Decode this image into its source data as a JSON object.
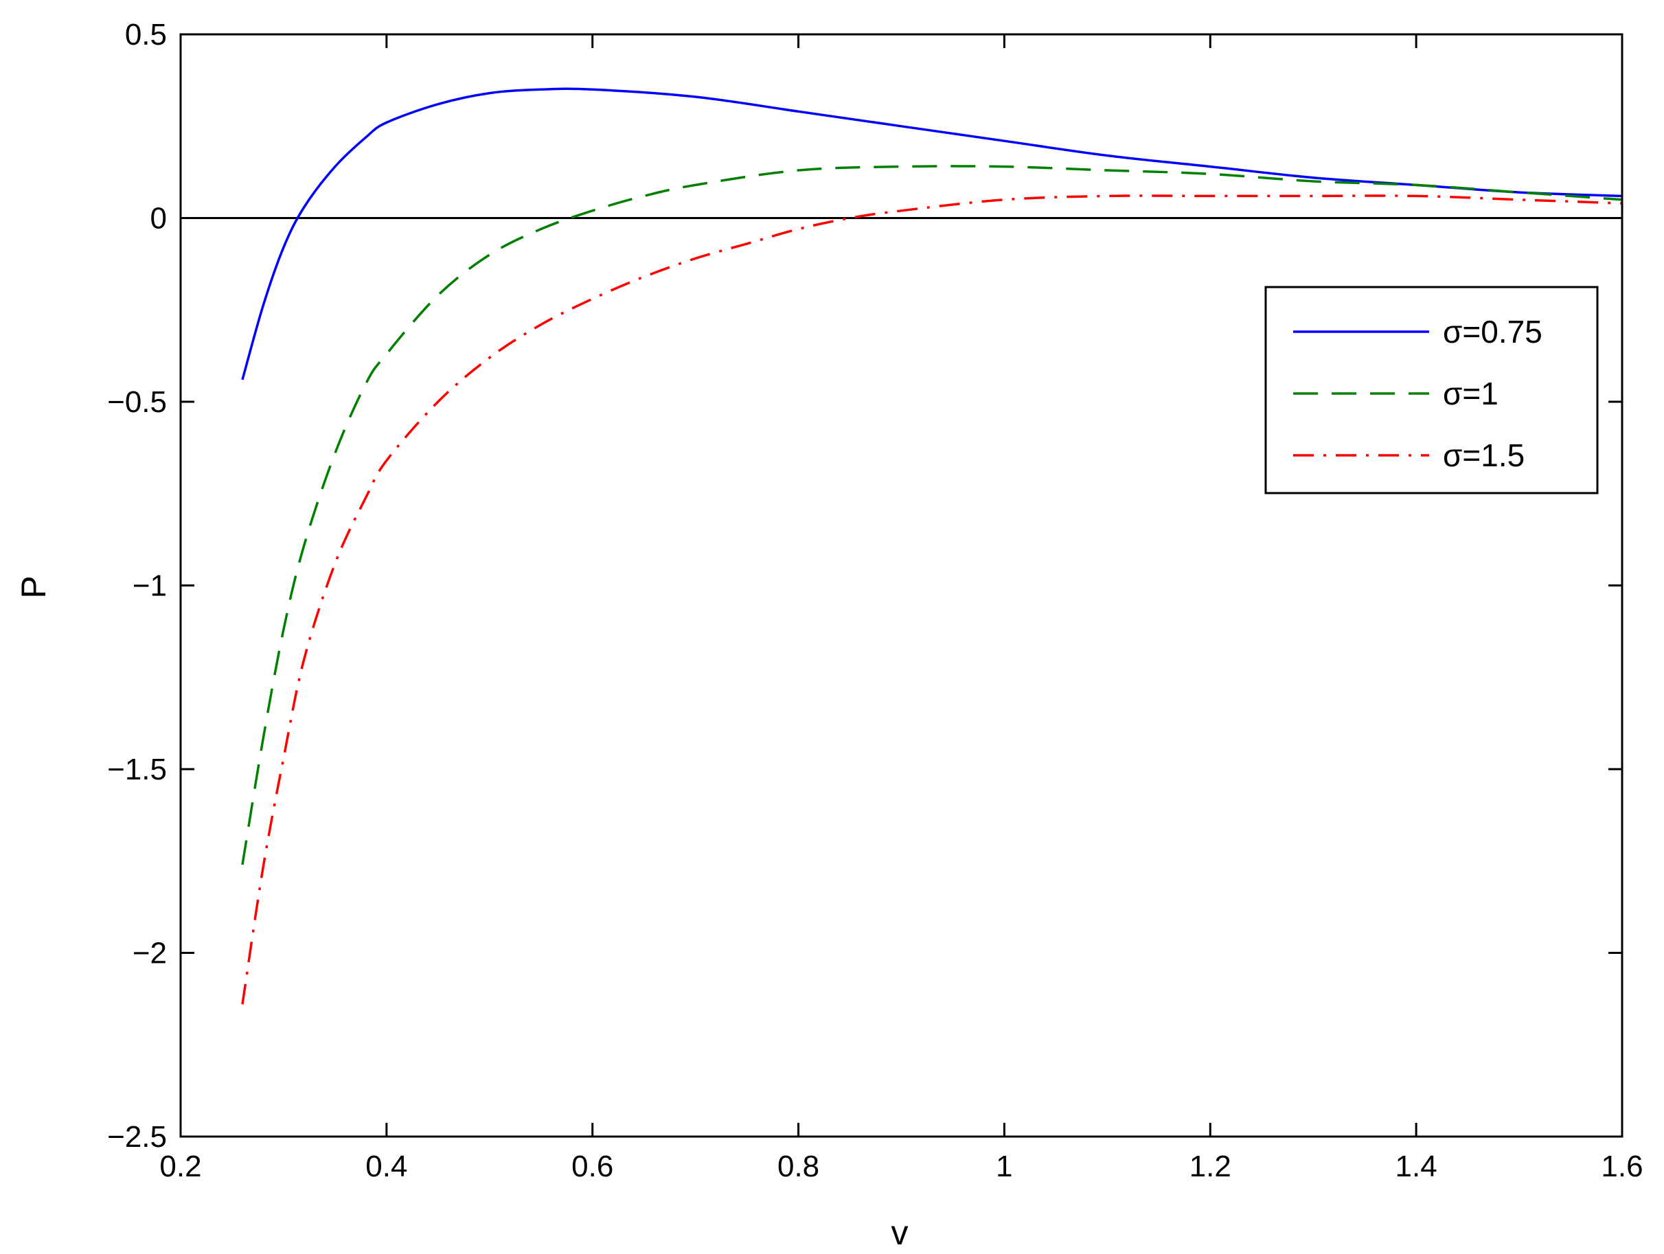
{
  "chart_data": {
    "type": "line",
    "xlabel": "v",
    "ylabel": "P",
    "xlim": [
      0.2,
      1.6
    ],
    "ylim": [
      -2.5,
      0.5
    ],
    "xticks": [
      0.2,
      0.4,
      0.6,
      0.8,
      1,
      1.2,
      1.4,
      1.6
    ],
    "xtick_labels": [
      "0.2",
      "0.4",
      "0.6",
      "0.8",
      "1",
      "1.2",
      "1.4",
      "1.6"
    ],
    "yticks": [
      -2.5,
      -2,
      -1.5,
      -1,
      -0.5,
      0,
      0.5
    ],
    "ytick_labels": [
      "−2.5",
      "−2",
      "−1.5",
      "−1",
      "−0.5",
      "0",
      "0.5"
    ],
    "grid": false,
    "legend_position": "top-right",
    "reference_line": {
      "y": 0,
      "color": "#000000"
    },
    "series": [
      {
        "name": "σ=0.75",
        "color": "#0000ff",
        "style": "solid",
        "x": [
          0.26,
          0.28,
          0.3,
          0.32,
          0.35,
          0.38,
          0.4,
          0.45,
          0.5,
          0.55,
          0.6,
          0.7,
          0.8,
          0.9,
          1.0,
          1.1,
          1.2,
          1.3,
          1.4,
          1.5,
          1.6
        ],
        "y": [
          -0.44,
          -0.24,
          -0.08,
          0.03,
          0.14,
          0.22,
          0.26,
          0.31,
          0.34,
          0.35,
          0.35,
          0.33,
          0.29,
          0.25,
          0.21,
          0.17,
          0.14,
          0.11,
          0.09,
          0.07,
          0.06
        ]
      },
      {
        "name": "σ=1",
        "color": "#008000",
        "style": "dashed",
        "x": [
          0.26,
          0.28,
          0.3,
          0.32,
          0.35,
          0.38,
          0.4,
          0.45,
          0.5,
          0.55,
          0.6,
          0.65,
          0.7,
          0.8,
          0.9,
          1.0,
          1.1,
          1.2,
          1.3,
          1.4,
          1.5,
          1.6
        ],
        "y": [
          -1.76,
          -1.42,
          -1.12,
          -0.89,
          -0.64,
          -0.45,
          -0.37,
          -0.21,
          -0.1,
          -0.03,
          0.02,
          0.06,
          0.09,
          0.13,
          0.14,
          0.14,
          0.13,
          0.12,
          0.1,
          0.09,
          0.07,
          0.05
        ]
      },
      {
        "name": "σ=1.5",
        "color": "#ff0000",
        "style": "dashdot",
        "x": [
          0.26,
          0.28,
          0.3,
          0.32,
          0.35,
          0.38,
          0.4,
          0.45,
          0.5,
          0.55,
          0.6,
          0.65,
          0.7,
          0.75,
          0.8,
          0.85,
          0.9,
          1.0,
          1.1,
          1.2,
          1.3,
          1.4,
          1.5,
          1.6
        ],
        "y": [
          -2.14,
          -1.77,
          -1.47,
          -1.2,
          -0.94,
          -0.76,
          -0.66,
          -0.5,
          -0.38,
          -0.29,
          -0.22,
          -0.16,
          -0.11,
          -0.07,
          -0.03,
          0.0,
          0.02,
          0.05,
          0.06,
          0.06,
          0.06,
          0.06,
          0.05,
          0.04
        ]
      }
    ]
  }
}
